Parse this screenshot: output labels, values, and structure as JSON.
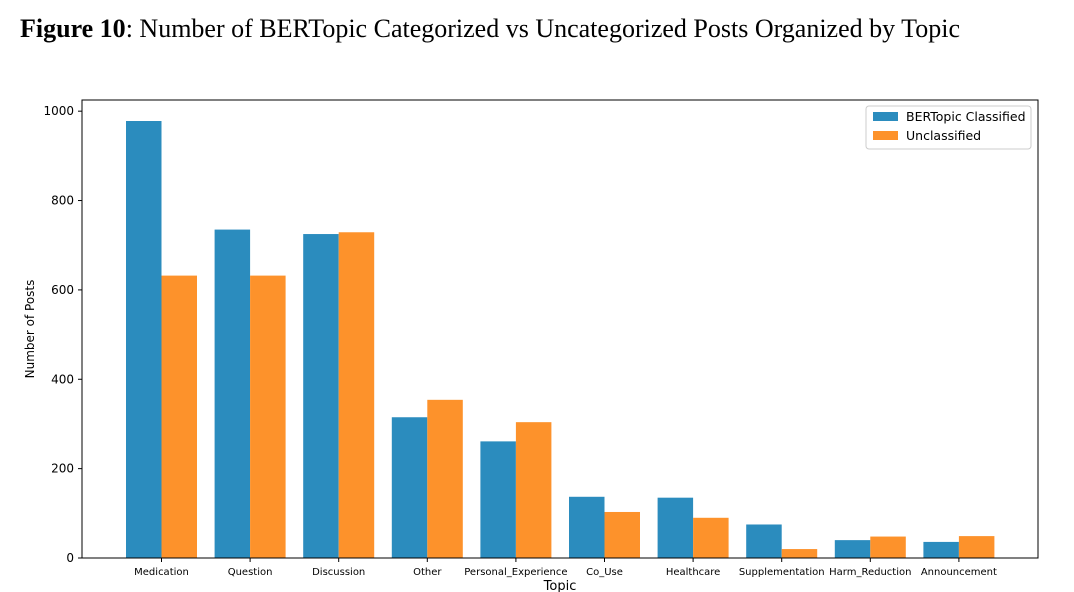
{
  "caption": {
    "figure_label": "Figure 10",
    "text": ": Number of BERTopic Categorized vs Uncategorized Posts Organized by Topic"
  },
  "chart_data": {
    "type": "bar",
    "title": "",
    "xlabel": "Topic",
    "ylabel": "Number of Posts",
    "categories": [
      "Medication",
      "Question",
      "Discussion",
      "Other",
      "Personal_Experience",
      "Co_Use",
      "Healthcare",
      "Supplementation",
      "Harm_Reduction",
      "Announcement"
    ],
    "series": [
      {
        "name": "BERTopic Classified",
        "color": "#2b8cbe",
        "values": [
          978,
          735,
          725,
          315,
          261,
          137,
          135,
          75,
          40,
          36
        ]
      },
      {
        "name": "Unclassified",
        "color": "#fd922b",
        "values": [
          632,
          632,
          729,
          354,
          304,
          103,
          90,
          20,
          48,
          49
        ]
      }
    ],
    "ylim": [
      0,
      1025
    ],
    "yticks": [
      0,
      200,
      400,
      600,
      800,
      1000
    ],
    "grid": false,
    "legend_position": "top-right"
  }
}
